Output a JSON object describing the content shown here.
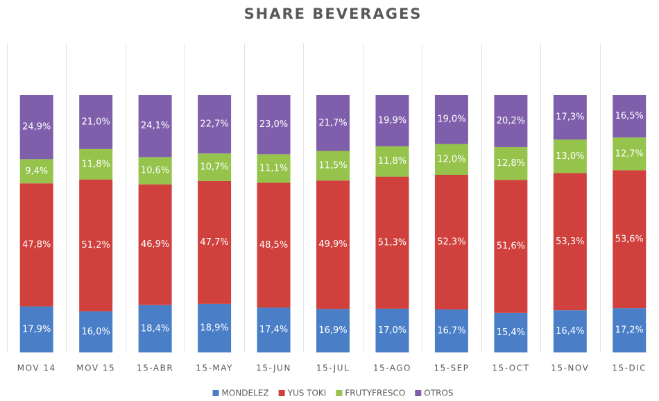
{
  "chart_data": {
    "type": "stacked_bar",
    "title": "SHARE BEVERAGES",
    "categories": [
      "MOV 14",
      "MOV 15",
      "15-ABR",
      "15-MAY",
      "15-JUN",
      "15-JUL",
      "15-AGO",
      "15-SEP",
      "15-OCT",
      "15-NOV",
      "15-DIC"
    ],
    "ylim": [
      0,
      100
    ],
    "series": [
      {
        "name": "MONDELEZ",
        "color": "#4a7fc8",
        "values": [
          17.9,
          16.0,
          18.4,
          18.9,
          17.4,
          16.9,
          17.0,
          16.7,
          15.4,
          16.4,
          17.2
        ],
        "value_labels": [
          "17,9%",
          "16,0%",
          "18,4%",
          "18,9%",
          "17,4%",
          "16,9%",
          "17,0%",
          "16,7%",
          "15,4%",
          "16,4%",
          "17,2%"
        ]
      },
      {
        "name": "YUS TOKI",
        "color": "#d0403c",
        "values": [
          47.8,
          51.2,
          46.9,
          47.7,
          48.5,
          49.9,
          51.3,
          52.3,
          51.6,
          53.3,
          53.6
        ],
        "value_labels": [
          "47,8%",
          "51,2%",
          "46,9%",
          "47,7%",
          "48,5%",
          "49,9%",
          "51,3%",
          "52,3%",
          "51,6%",
          "53,3%",
          "53,6%"
        ]
      },
      {
        "name": "FRUTYFRESCO",
        "color": "#95c34b",
        "values": [
          9.4,
          11.8,
          10.6,
          10.7,
          11.1,
          11.5,
          11.8,
          12.0,
          12.8,
          13.0,
          12.7
        ],
        "value_labels": [
          "9,4%",
          "11,8%",
          "10,6%",
          "10,7%",
          "11,1%",
          "11,5%",
          "11,8%",
          "12,0%",
          "12,8%",
          "13,0%",
          "12,7%"
        ]
      },
      {
        "name": "OTROS",
        "color": "#7f5fab",
        "values": [
          24.9,
          21.0,
          24.1,
          22.7,
          23.0,
          21.7,
          19.9,
          19.0,
          20.2,
          17.3,
          16.5
        ],
        "value_labels": [
          "24,9%",
          "21,0%",
          "24,1%",
          "22,7%",
          "23,0%",
          "21,7%",
          "19,9%",
          "19,0%",
          "20,2%",
          "17,3%",
          "16,5%"
        ]
      }
    ]
  }
}
